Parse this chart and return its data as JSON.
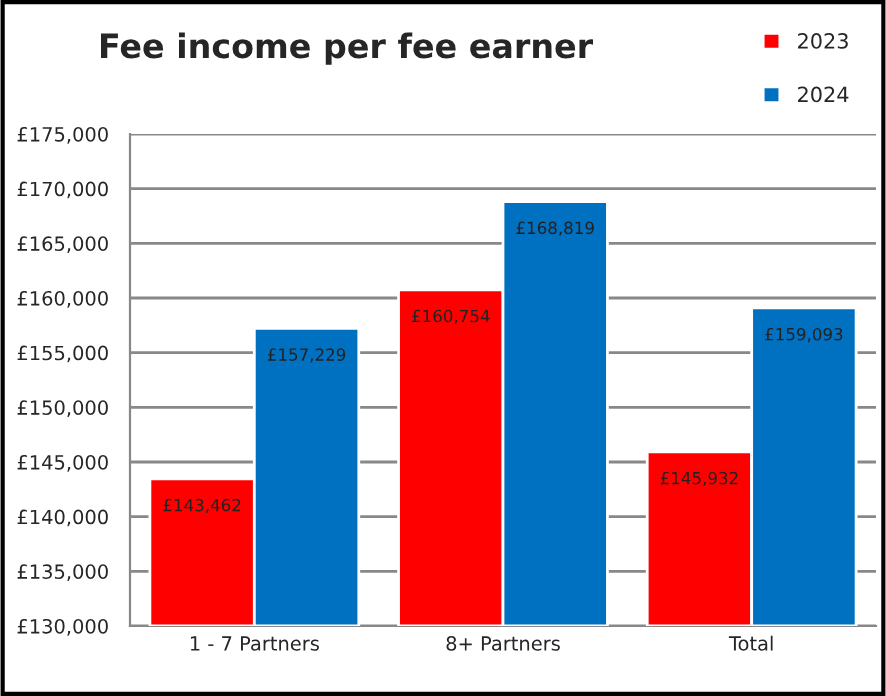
{
  "chart_data": {
    "type": "bar",
    "title": "Fee income per fee earner",
    "categories": [
      "1 - 7 Partners",
      "8+ Partners",
      "Total"
    ],
    "series": [
      {
        "name": "2023",
        "color": "#ff0000",
        "values": [
          143462,
          160754,
          145932
        ],
        "value_labels": [
          "£143,462",
          "£160,754",
          "£145,932"
        ]
      },
      {
        "name": "2024",
        "color": "#0070c0",
        "values": [
          157229,
          168819,
          159093
        ],
        "value_labels": [
          "£157,229",
          "£168,819",
          "£159,093"
        ]
      }
    ],
    "ylim": [
      130000,
      175000
    ],
    "yticks": [
      {
        "value": 130000,
        "label": "£130,000"
      },
      {
        "value": 135000,
        "label": "£135,000"
      },
      {
        "value": 140000,
        "label": "£140,000"
      },
      {
        "value": 145000,
        "label": "£145,000"
      },
      {
        "value": 150000,
        "label": "£150,000"
      },
      {
        "value": 155000,
        "label": "£155,000"
      },
      {
        "value": 160000,
        "label": "£160,000"
      },
      {
        "value": 165000,
        "label": "£165,000"
      },
      {
        "value": 170000,
        "label": "£170,000"
      },
      {
        "value": 175000,
        "label": "£175,000"
      }
    ],
    "grid": "y",
    "legend": "top right"
  }
}
